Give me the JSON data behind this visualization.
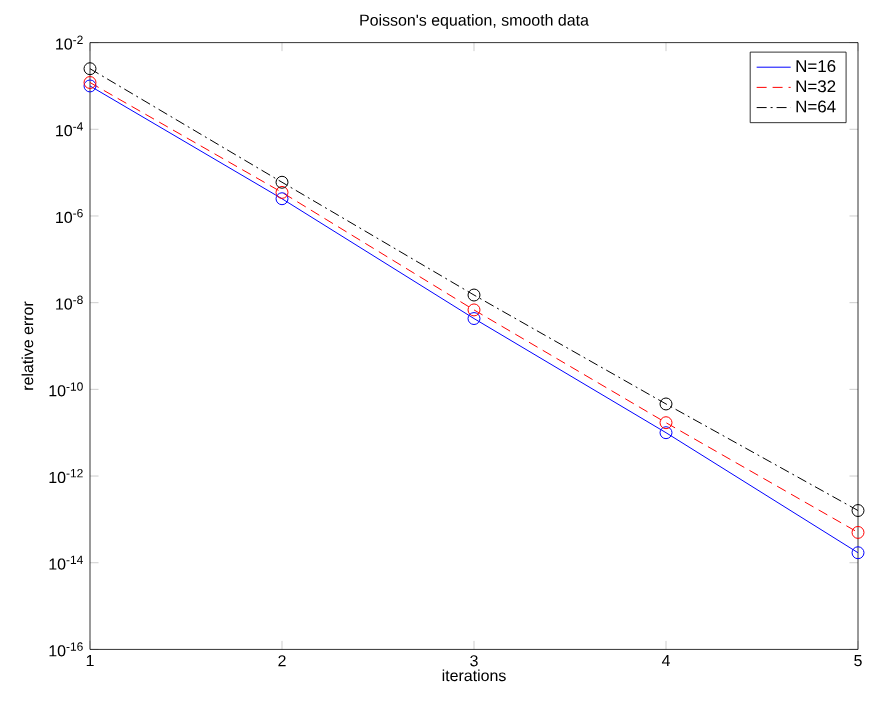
{
  "chart_data": {
    "type": "line",
    "title": "Poisson's equation, smooth data",
    "xlabel": "iterations",
    "ylabel": "relative error",
    "x": [
      1,
      2,
      3,
      4,
      5
    ],
    "log": "y",
    "marker": "circle",
    "legend": "top right",
    "xlim": [
      1,
      5
    ],
    "xticks": [
      1,
      2,
      3,
      4,
      5
    ],
    "ylim": [
      1e-16,
      0.01
    ],
    "yticks": [
      {
        "value": 1e-16,
        "label": "10$^{-16}$"
      },
      {
        "value": 1e-14,
        "label": "10$^{-14}$"
      },
      {
        "value": 1e-12,
        "label": "10$^{-12}$"
      },
      {
        "value": 1e-10,
        "label": "10$^{-10}$"
      },
      {
        "value": 1e-08,
        "label": "10$^{-8}$"
      },
      {
        "value": 1e-06,
        "label": "10$^{-6}$"
      },
      {
        "value": 0.0001,
        "label": "10$^{-4}$"
      },
      {
        "value": 0.01,
        "label": "10$^{-2}$"
      }
    ],
    "series": [
      {
        "name": "N=16",
        "color": "#0000ff",
        "line_style": "solid",
        "values": [
          0.001,
          2.5e-06,
          4.3e-09,
          1e-11,
          1.7e-14
        ]
      },
      {
        "name": "N=32",
        "color": "#ff0000",
        "line_style": "dashed",
        "values": [
          0.0012,
          3.5e-06,
          6.8e-09,
          1.7e-11,
          5e-14
        ]
      },
      {
        "name": "N=64",
        "color": "#000000",
        "line_style": "dashdot",
        "values": [
          0.0025,
          6e-06,
          1.5e-08,
          4.6e-11,
          1.6e-13
        ]
      }
    ]
  }
}
